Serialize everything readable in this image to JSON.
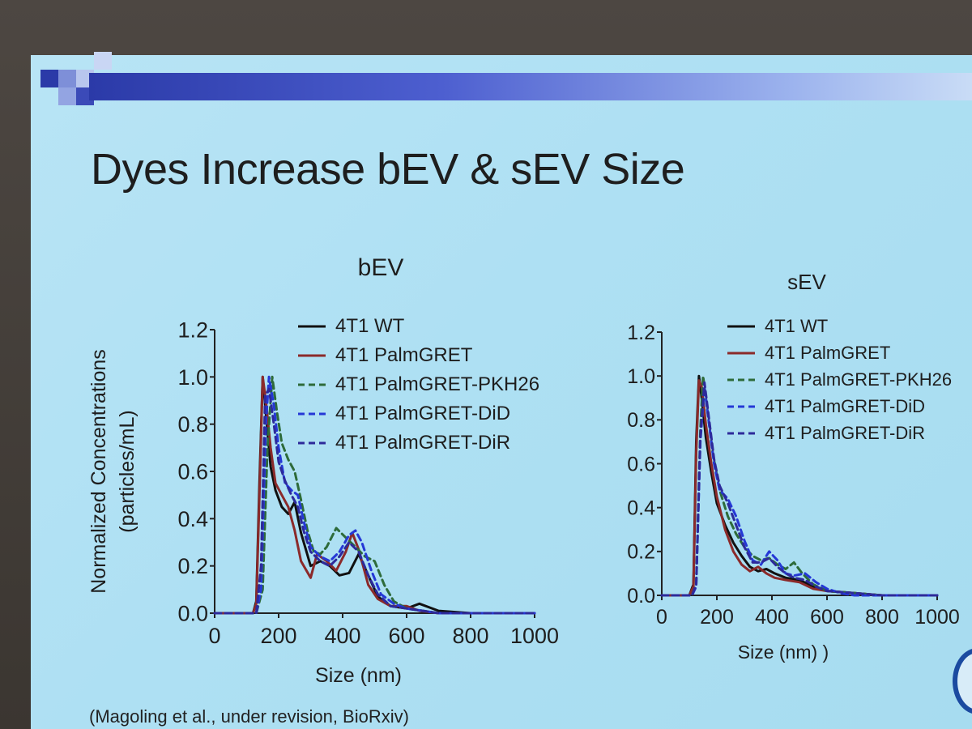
{
  "slide": {
    "title": "Dyes Increase bEV & sEV Size",
    "citation": "(Magoling et al., under revision, BioRxiv)"
  },
  "colors": {
    "wt": "#111111",
    "palmgret": "#8b2a2a",
    "pkh26": "#2e6b3a",
    "did": "#2538d6",
    "dir": "#2d2a9a"
  },
  "chart_data": [
    {
      "type": "line",
      "title": "bEV",
      "xlabel": "Size (nm)",
      "ylabel": "Normalized Concentrations (particles/mL)",
      "xlim": [
        0,
        1000
      ],
      "ylim": [
        0,
        1.2
      ],
      "xticks": [
        0,
        200,
        400,
        600,
        800,
        1000
      ],
      "yticks": [
        0.0,
        0.2,
        0.4,
        0.6,
        0.8,
        1.0,
        1.2
      ],
      "series": [
        {
          "name": "4T1 WT",
          "style": "solid",
          "color": "#111111",
          "x": [
            0,
            100,
            120,
            130,
            140,
            150,
            160,
            175,
            190,
            210,
            230,
            250,
            270,
            300,
            330,
            360,
            390,
            420,
            450,
            480,
            510,
            550,
            600,
            640,
            700,
            800,
            1000
          ],
          "y": [
            0,
            0,
            0,
            0.05,
            0.55,
            1.0,
            0.85,
            0.62,
            0.52,
            0.45,
            0.42,
            0.47,
            0.34,
            0.2,
            0.22,
            0.2,
            0.16,
            0.17,
            0.25,
            0.16,
            0.07,
            0.03,
            0.02,
            0.04,
            0.01,
            0,
            0
          ]
        },
        {
          "name": "4T1 PalmGRET",
          "style": "solid",
          "color": "#8b2a2a",
          "x": [
            0,
            100,
            120,
            130,
            140,
            150,
            160,
            175,
            190,
            210,
            230,
            250,
            270,
            300,
            320,
            350,
            380,
            410,
            430,
            450,
            480,
            510,
            550,
            600,
            640,
            700,
            800,
            1000
          ],
          "y": [
            0,
            0,
            0,
            0.04,
            0.5,
            1.0,
            0.9,
            0.7,
            0.55,
            0.5,
            0.45,
            0.35,
            0.22,
            0.15,
            0.25,
            0.22,
            0.18,
            0.26,
            0.34,
            0.27,
            0.12,
            0.06,
            0.03,
            0.03,
            0.01,
            0,
            0,
            0
          ]
        },
        {
          "name": "4T1 PalmGRET-PKH26",
          "style": "dashed",
          "color": "#2e6b3a",
          "x": [
            0,
            100,
            130,
            150,
            165,
            180,
            195,
            210,
            230,
            250,
            270,
            290,
            310,
            330,
            350,
            380,
            410,
            440,
            470,
            500,
            530,
            560,
            600,
            650,
            700,
            800,
            1000
          ],
          "y": [
            0,
            0,
            0,
            0.1,
            0.7,
            1.0,
            0.85,
            0.72,
            0.65,
            0.6,
            0.48,
            0.35,
            0.26,
            0.25,
            0.28,
            0.36,
            0.32,
            0.28,
            0.24,
            0.22,
            0.12,
            0.05,
            0.02,
            0.01,
            0,
            0,
            0
          ]
        },
        {
          "name": "4T1 PalmGRET-DiD",
          "style": "dashed",
          "color": "#2538d6",
          "x": [
            0,
            100,
            130,
            145,
            160,
            170,
            185,
            200,
            220,
            240,
            260,
            280,
            300,
            330,
            360,
            390,
            420,
            440,
            460,
            490,
            520,
            560,
            600,
            650,
            700,
            800,
            1000
          ],
          "y": [
            0,
            0,
            0,
            0.1,
            0.8,
            1.0,
            0.88,
            0.7,
            0.55,
            0.52,
            0.5,
            0.38,
            0.28,
            0.24,
            0.22,
            0.26,
            0.33,
            0.35,
            0.3,
            0.18,
            0.08,
            0.04,
            0.02,
            0.01,
            0,
            0,
            0
          ]
        },
        {
          "name": "4T1 PalmGRET-DiR",
          "style": "dashed",
          "color": "#2d2a9a",
          "x": [
            0,
            100,
            130,
            145,
            158,
            170,
            185,
            200,
            220,
            240,
            260,
            280,
            300,
            330,
            360,
            390,
            420,
            450,
            480,
            510,
            550,
            600,
            650,
            700,
            800,
            1000
          ],
          "y": [
            0,
            0,
            0,
            0.2,
            0.92,
            0.95,
            0.8,
            0.64,
            0.56,
            0.5,
            0.45,
            0.34,
            0.26,
            0.22,
            0.2,
            0.24,
            0.3,
            0.26,
            0.16,
            0.08,
            0.03,
            0.02,
            0.01,
            0,
            0,
            0
          ]
        }
      ],
      "legend": "top-right"
    },
    {
      "type": "line",
      "title": "sEV",
      "xlabel": "Size (nm) )",
      "ylabel": "",
      "xlim": [
        0,
        1000
      ],
      "ylim": [
        0,
        1.2
      ],
      "xticks": [
        0,
        200,
        400,
        600,
        800,
        1000
      ],
      "yticks": [
        0.0,
        0.2,
        0.4,
        0.6,
        0.8,
        1.0,
        1.2
      ],
      "series": [
        {
          "name": "4T1 WT",
          "style": "solid",
          "color": "#111111",
          "x": [
            0,
            100,
            115,
            125,
            135,
            145,
            160,
            180,
            200,
            230,
            260,
            290,
            320,
            350,
            380,
            410,
            450,
            500,
            550,
            600,
            700,
            800,
            1000
          ],
          "y": [
            0,
            0,
            0.05,
            0.7,
            1.0,
            0.9,
            0.72,
            0.56,
            0.42,
            0.32,
            0.24,
            0.18,
            0.13,
            0.11,
            0.12,
            0.1,
            0.08,
            0.07,
            0.04,
            0.02,
            0.01,
            0,
            0
          ]
        },
        {
          "name": "4T1 PalmGRET",
          "style": "solid",
          "color": "#8b2a2a",
          "x": [
            0,
            100,
            115,
            125,
            135,
            145,
            160,
            180,
            200,
            230,
            260,
            290,
            320,
            350,
            380,
            410,
            450,
            500,
            550,
            600,
            700,
            800,
            1000
          ],
          "y": [
            0,
            0,
            0.04,
            0.65,
            0.98,
            0.95,
            0.78,
            0.6,
            0.45,
            0.3,
            0.2,
            0.14,
            0.11,
            0.13,
            0.1,
            0.08,
            0.07,
            0.06,
            0.03,
            0.02,
            0.01,
            0,
            0
          ]
        },
        {
          "name": "4T1 PalmGRET-PKH26",
          "style": "dashed",
          "color": "#2e6b3a",
          "x": [
            0,
            110,
            125,
            140,
            150,
            165,
            185,
            210,
            240,
            270,
            300,
            330,
            360,
            390,
            420,
            450,
            480,
            510,
            550,
            600,
            700,
            800,
            1000
          ],
          "y": [
            0,
            0,
            0.05,
            0.75,
            1.0,
            0.85,
            0.65,
            0.48,
            0.36,
            0.28,
            0.22,
            0.18,
            0.16,
            0.17,
            0.14,
            0.12,
            0.15,
            0.1,
            0.05,
            0.02,
            0.01,
            0,
            0
          ]
        },
        {
          "name": "4T1 PalmGRET-DiD",
          "style": "dashed",
          "color": "#2538d6",
          "x": [
            0,
            110,
            125,
            140,
            155,
            170,
            190,
            210,
            240,
            270,
            300,
            330,
            360,
            390,
            420,
            450,
            480,
            520,
            560,
            600,
            650,
            700,
            800,
            1000
          ],
          "y": [
            0,
            0,
            0.04,
            0.7,
            0.95,
            0.8,
            0.6,
            0.48,
            0.44,
            0.36,
            0.25,
            0.16,
            0.14,
            0.2,
            0.16,
            0.1,
            0.09,
            0.1,
            0.06,
            0.03,
            0.01,
            0,
            0,
            0
          ]
        },
        {
          "name": "4T1 PalmGRET-DiR",
          "style": "dashed",
          "color": "#2d2a9a",
          "x": [
            0,
            110,
            125,
            140,
            155,
            170,
            190,
            210,
            240,
            270,
            300,
            330,
            360,
            390,
            420,
            450,
            480,
            520,
            560,
            600,
            700,
            800,
            1000
          ],
          "y": [
            0,
            0,
            0.05,
            0.72,
            0.97,
            0.82,
            0.62,
            0.5,
            0.42,
            0.32,
            0.22,
            0.15,
            0.15,
            0.17,
            0.13,
            0.1,
            0.08,
            0.07,
            0.04,
            0.02,
            0.01,
            0,
            0
          ]
        }
      ],
      "legend": "top-right"
    }
  ]
}
